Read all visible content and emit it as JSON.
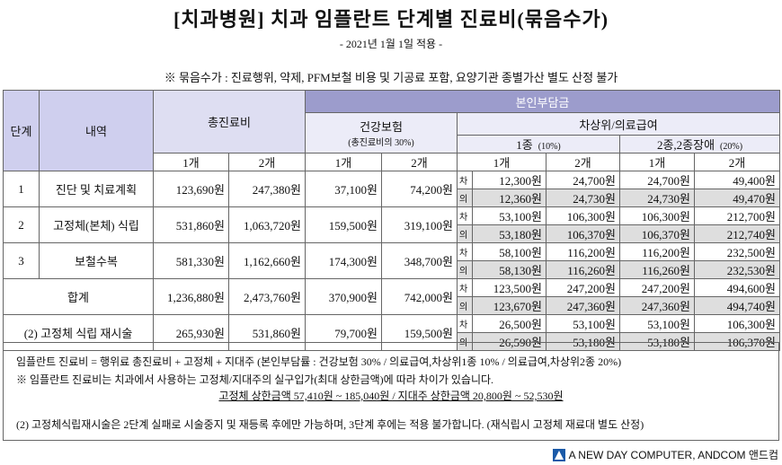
{
  "header": {
    "title": "[치과병원] 치과 임플란트 단계별 진료비(묶음수가)",
    "subtitle": "- 2021년 1월 1일 적용 -",
    "note": "※ 묶음수가 : 진료행위, 약제, PFM보철 비용 및 기공료 포함, 요양기관 종별가산 별도 산정 불가"
  },
  "table": {
    "head": {
      "stage": "단계",
      "item": "내역",
      "total": "총진료비",
      "copay": "본인부담금",
      "insurance": "건강보험",
      "insurance_rate": "(총진료비의 30%)",
      "low_income": "차상위/의료급여",
      "class1": "1종",
      "class1_rate": "(10%)",
      "class2": "2종,2종장애",
      "class2_rate": "(20%)",
      "count_labels": [
        "1개",
        "2개",
        "1개",
        "2개",
        "1개",
        "2개",
        "1개",
        "2개"
      ]
    },
    "rows": [
      {
        "stage": "1",
        "item": "진단 및 치료계획",
        "total": [
          "123,690원",
          "247,380원"
        ],
        "insurance": [
          "37,100원",
          "74,200원"
        ],
        "sub": [
          {
            "tag": "차",
            "values": [
              "12,300원",
              "24,700원",
              "24,700원",
              "49,400원"
            ]
          },
          {
            "tag": "의",
            "values": [
              "12,360원",
              "24,730원",
              "24,730원",
              "49,470원"
            ]
          }
        ]
      },
      {
        "stage": "2",
        "item": "고정체(본체) 식립",
        "total": [
          "531,860원",
          "1,063,720원"
        ],
        "insurance": [
          "159,500원",
          "319,100원"
        ],
        "sub": [
          {
            "tag": "차",
            "values": [
              "53,100원",
              "106,300원",
              "106,300원",
              "212,700원"
            ]
          },
          {
            "tag": "의",
            "values": [
              "53,180원",
              "106,370원",
              "106,370원",
              "212,740원"
            ]
          }
        ]
      },
      {
        "stage": "3",
        "item": "보철수복",
        "total": [
          "581,330원",
          "1,162,660원"
        ],
        "insurance": [
          "174,300원",
          "348,700원"
        ],
        "sub": [
          {
            "tag": "차",
            "values": [
              "58,100원",
              "116,200원",
              "116,200원",
              "232,500원"
            ]
          },
          {
            "tag": "의",
            "values": [
              "58,130원",
              "116,260원",
              "116,260원",
              "232,530원"
            ]
          }
        ]
      },
      {
        "item": "합계",
        "total": [
          "1,236,880원",
          "2,473,760원"
        ],
        "insurance": [
          "370,900원",
          "742,000원"
        ],
        "sub": [
          {
            "tag": "차",
            "values": [
              "123,500원",
              "247,200원",
              "247,200원",
              "494,600원"
            ]
          },
          {
            "tag": "의",
            "values": [
              "123,670원",
              "247,360원",
              "247,360원",
              "494,740원"
            ]
          }
        ]
      },
      {
        "item": "(2) 고정체 식립 재시술",
        "total": [
          "265,930원",
          "531,860원"
        ],
        "insurance": [
          "79,700원",
          "159,500원"
        ],
        "sub": [
          {
            "tag": "차",
            "values": [
              "26,500원",
              "53,100원",
              "53,100원",
              "106,300원"
            ]
          },
          {
            "tag": "의",
            "values": [
              "26,590원",
              "53,180원",
              "53,180원",
              "106,370원"
            ]
          }
        ]
      }
    ]
  },
  "footer": {
    "formula": "임플란트 진료비 = 행위료 총진료비 + 고정체 + 지대주 (본인부담률 : 건강보험 30% / 의료급여,차상위1종 10% / 의료급여,차상위2종 20%)",
    "note": "※ 임플란트 진료비는 치과에서 사용하는 고정체/지대주의 실구입가(최대 상한금액)에 따라 차이가 있습니다.",
    "limits": "고정체 상한금액 57,410원 ~ 185,040원 / 지대주 상한금액 20,800원 ~ 52,530원",
    "retreatment": "(2) 고정체식립재시술은 2단계 실패로 시술중지 및 재등록 후에만 가능하며, 3단계 후에는 적용 불가합니다. (재식립시 고정체 재료대 별도 산정)"
  },
  "brand": "A NEW DAY COMPUTER, ANDCOM 앤드컴"
}
